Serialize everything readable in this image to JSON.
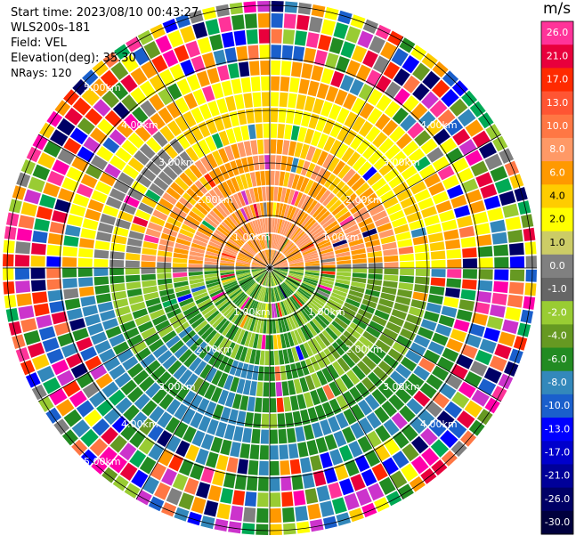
{
  "header": {
    "start_time": "Start time: 2023/08/10 00:43:27",
    "instrument": "WLS200s-181",
    "field": "Field: VEL",
    "elevation": "Elevation(deg): 35.30",
    "nrays": "NRays: 120"
  },
  "range_labels": {
    "r1": "1.00km",
    "r2": "2.00km",
    "r3": "3.00km",
    "r4": "4.00km",
    "r5": "5.00km"
  },
  "colorbar": {
    "unit": "m/s",
    "levels": [
      {
        "label": "26.0",
        "color": "#ff3399"
      },
      {
        "label": "21.0",
        "color": "#e8003c"
      },
      {
        "label": "17.0",
        "color": "#ff2a00"
      },
      {
        "label": "13.0",
        "color": "#ff5533"
      },
      {
        "label": "10.0",
        "color": "#ff7744"
      },
      {
        "label": "8.0",
        "color": "#ff9966"
      },
      {
        "label": "6.0",
        "color": "#ff9900"
      },
      {
        "label": "4.0",
        "color": "#ffcc00"
      },
      {
        "label": "2.0",
        "color": "#ffff00"
      },
      {
        "label": "1.0",
        "color": "#cccc66"
      },
      {
        "label": "0.0",
        "color": "#808080"
      },
      {
        "label": "-1.0",
        "color": "#666666"
      },
      {
        "label": "-2.0",
        "color": "#99cc33"
      },
      {
        "label": "-4.0",
        "color": "#669922"
      },
      {
        "label": "-6.0",
        "color": "#228b22"
      },
      {
        "label": "-8.0",
        "color": "#3388bb"
      },
      {
        "label": "-10.0",
        "color": "#1a5fcc"
      },
      {
        "label": "-13.0",
        "color": "#0000ff"
      },
      {
        "label": "-17.0",
        "color": "#0000cc"
      },
      {
        "label": "-21.0",
        "color": "#000099"
      },
      {
        "label": "-26.0",
        "color": "#000066"
      },
      {
        "label": "-30.0",
        "color": "#00003d"
      }
    ]
  },
  "colors": {
    "noise": [
      "#ff3399",
      "#e8003c",
      "#ff2a00",
      "#ffff00",
      "#ff9900",
      "#228b22",
      "#0000ff",
      "#000066",
      "#99cc33",
      "#808080",
      "#3388bb",
      "#ff7744",
      "#669922",
      "#ffcc00",
      "#1a5fcc",
      "#cc33cc",
      "#00aa55",
      "#ff00aa"
    ]
  }
}
